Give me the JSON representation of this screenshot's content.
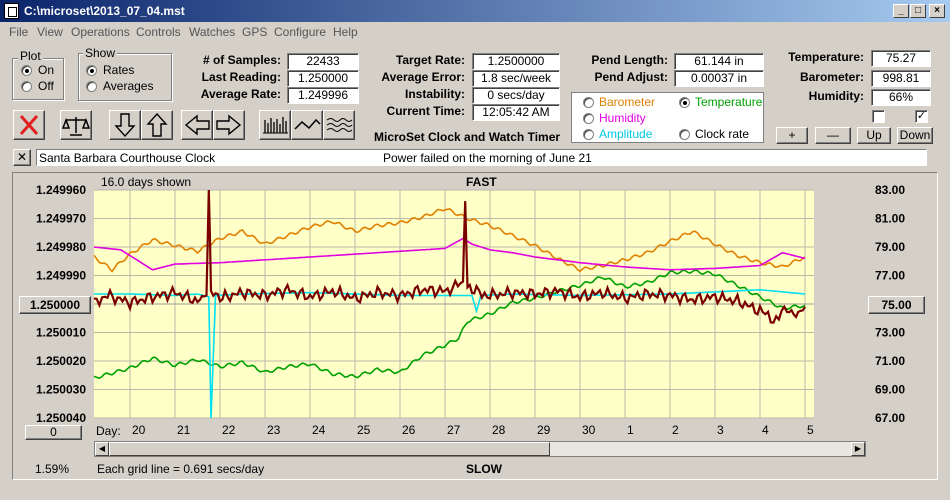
{
  "window": {
    "title": "C:\\microset\\2013_07_04.mst"
  },
  "menu": [
    "File",
    "View",
    "Operations",
    "Controls",
    "Watches",
    "GPS",
    "Configure",
    "Help"
  ],
  "plot_group": {
    "title": "Plot",
    "on": "On",
    "off": "Off",
    "selected": "On"
  },
  "show_group": {
    "title": "Show",
    "rates": "Rates",
    "averages": "Averages",
    "selected": "Rates"
  },
  "stats": {
    "samples_label": "# of Samples:",
    "samples": "22433",
    "last_label": "Last Reading:",
    "last": "1.250000",
    "avg_label": "Average Rate:",
    "avg": "1.249996",
    "target_label": "Target Rate:",
    "target": "1.2500000",
    "avgerr_label": "Average Error:",
    "avgerr": "1.8 sec/week",
    "instab_label": "Instability:",
    "instab": "0 secs/day",
    "time_label": "Current Time:",
    "time": "12:05:42 AM",
    "pend_len_label": "Pend Length:",
    "pend_len": "61.144 in",
    "pend_adj_label": "Pend Adjust:",
    "pend_adj": "0.00037 in",
    "temp_label": "Temperature:",
    "temp": "75.27",
    "baro_label": "Barometer:",
    "baro": "998.81",
    "humid_label": "Humidity:",
    "humid": "66%"
  },
  "app_name": "MicroSet Clock and Watch Timer",
  "sensor_select": {
    "barometer": "Barometer",
    "temperature": "Temperature",
    "humidity": "Humidity",
    "amplitude": "Amplitude",
    "clock_rate": "Clock rate",
    "selected": "Temperature"
  },
  "sensor_buttons": {
    "plus": "+",
    "minus": "—",
    "up": "Up",
    "down": "Down"
  },
  "checkboxes": [
    false,
    true
  ],
  "note": {
    "clock_name": "Santa Barbara Courthouse Clock",
    "comment": "Power failed on the morning of June 21"
  },
  "chart_header": {
    "days_shown": "16.0 days shown",
    "fast": "FAST",
    "slow": "SLOW",
    "grid_note": "Each grid line = 0.691 secs/day",
    "percent": "1.59%",
    "day_label": "Day:",
    "center_value": "1.250000",
    "right_center_value": "75.00",
    "offset_value": "0"
  },
  "colors": {
    "rate": "#7a0000",
    "temperature": "#00a000",
    "barometer": "#e08000",
    "humidity": "#e000e0",
    "amplitude": "#00e0f0",
    "plot_bg": "#ffffc8"
  },
  "chart_data": {
    "type": "line",
    "title": "",
    "y_left_ticks": [
      "1.249960",
      "1.249970",
      "1.249980",
      "1.249990",
      "1.250000",
      "1.250010",
      "1.250020",
      "1.250030",
      "1.250040"
    ],
    "y_right_ticks": [
      "83.00",
      "81.00",
      "79.00",
      "77.00",
      "75.00",
      "73.00",
      "71.00",
      "69.00",
      "67.00"
    ],
    "x_ticks": [
      "20",
      "21",
      "22",
      "23",
      "24",
      "25",
      "26",
      "27",
      "28",
      "29",
      "30",
      "1",
      "2",
      "3",
      "4",
      "5"
    ],
    "xlim": [
      19.2,
      35.2
    ],
    "ylim_right": [
      67,
      83
    ],
    "series": [
      {
        "name": "Temperature",
        "color": "#00a000",
        "x": [
          19.2,
          20,
          20.5,
          21,
          21.5,
          22,
          22.5,
          23,
          23.5,
          24,
          24.5,
          25,
          25.5,
          26,
          26.5,
          27,
          27.3,
          27.5,
          28,
          28.5,
          29,
          29.5,
          30,
          30.5,
          31,
          31.5,
          32,
          32.5,
          33,
          33.5,
          34,
          34.5,
          35
        ],
        "y": [
          69.8,
          70.5,
          71.2,
          70.7,
          71.1,
          70.6,
          70.9,
          70.2,
          70.6,
          70.8,
          70.1,
          69.9,
          70.4,
          70.2,
          71.4,
          72.1,
          72.6,
          73.8,
          74.3,
          75.1,
          75.4,
          75.9,
          76.3,
          76.9,
          76.2,
          76.5,
          77.2,
          77.3,
          77.1,
          76.3,
          75.5,
          74.7,
          74.9
        ]
      },
      {
        "name": "Barometer",
        "color": "#e08000",
        "x": [
          19.2,
          19.6,
          20,
          20.5,
          21,
          21.5,
          22,
          22.5,
          23,
          23.5,
          24,
          24.5,
          25,
          25.5,
          26,
          26.5,
          27,
          27.5,
          28,
          28.5,
          29,
          29.5,
          30,
          30.5,
          31,
          31.5,
          32,
          32.5,
          33,
          33.5,
          34,
          34.5,
          35
        ],
        "y": [
          78.3,
          77.4,
          78.5,
          79.5,
          79.1,
          78.7,
          79.6,
          80.1,
          79.2,
          79.8,
          80.4,
          80.8,
          80.1,
          80.5,
          80.7,
          81.1,
          81.7,
          81.0,
          80.5,
          79.8,
          79.1,
          78.2,
          77.4,
          77.7,
          78.1,
          78.6,
          79.4,
          80.1,
          79.2,
          78.4,
          77.9,
          77.6,
          78.3
        ]
      },
      {
        "name": "Humidity",
        "color": "#e000e0",
        "x": [
          19.2,
          19.8,
          20.5,
          21,
          22,
          23,
          24,
          25,
          26,
          27,
          27.4,
          27.6,
          28,
          28.5,
          29,
          30,
          31,
          32,
          33,
          34,
          34.5,
          35
        ],
        "y": [
          79.0,
          78.8,
          77.4,
          77.8,
          77.9,
          78.1,
          78.3,
          78.5,
          78.7,
          78.9,
          79.6,
          79.2,
          78.8,
          78.6,
          78.3,
          77.9,
          77.6,
          77.4,
          77.5,
          77.7,
          78.6,
          78.2
        ]
      },
      {
        "name": "Amplitude",
        "color": "#00e0f0",
        "x": [
          19.2,
          20,
          21,
          21.5,
          21.75,
          21.8,
          21.9,
          22.5,
          24,
          26,
          27,
          27.6,
          27.7,
          27.8,
          28.5,
          30,
          32,
          34,
          35
        ],
        "y": [
          75.7,
          75.7,
          75.6,
          75.7,
          75.5,
          67.0,
          75.6,
          75.7,
          75.8,
          75.6,
          75.6,
          75.6,
          74.5,
          75.6,
          75.7,
          75.6,
          75.7,
          76.0,
          75.7
        ]
      },
      {
        "name": "Rate",
        "color": "#7a0000",
        "x": [
          19.2,
          19.5,
          20,
          20.5,
          21,
          21.5,
          21.7,
          21.75,
          21.8,
          22,
          22.5,
          23,
          23.5,
          24,
          24.5,
          25,
          25.5,
          26,
          26.5,
          27,
          27.4,
          27.45,
          27.5,
          27.7,
          28,
          28.5,
          29,
          29.5,
          30,
          30.5,
          31,
          31.5,
          32,
          32.5,
          33,
          33.5,
          34,
          34.3,
          34.6,
          34.8,
          35
        ],
        "y": [
          75.2,
          75.6,
          75.1,
          75.5,
          75.8,
          75.2,
          75.7,
          83.0,
          75.9,
          75.4,
          75.8,
          75.6,
          76.0,
          75.5,
          75.9,
          75.4,
          75.8,
          75.6,
          76.0,
          75.9,
          76.5,
          82.5,
          76.1,
          75.9,
          75.6,
          75.8,
          75.7,
          75.9,
          75.5,
          75.8,
          75.4,
          75.7,
          75.6,
          75.3,
          75.5,
          75.2,
          74.5,
          73.9,
          74.6,
          74.2,
          74.8
        ]
      }
    ]
  }
}
